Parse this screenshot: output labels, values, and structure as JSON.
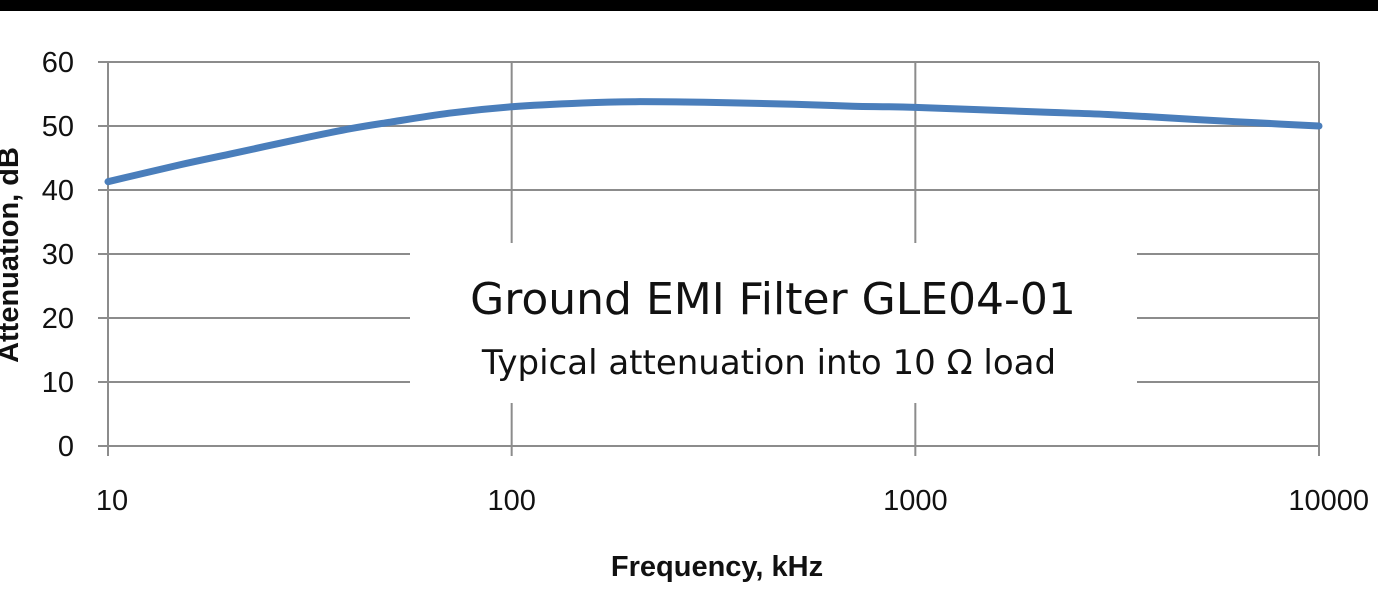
{
  "chart_data": {
    "type": "line",
    "title": "Ground EMI Filter GLE04-01",
    "subtitle": "Typical attenuation into 10 Ω load",
    "xlabel": "Frequency, kHz",
    "ylabel": "Attenuation, dB",
    "x_scale": "log",
    "xlim": [
      10,
      10000
    ],
    "ylim": [
      0,
      60
    ],
    "x_ticks": [
      "10",
      "100",
      "1000",
      "10000"
    ],
    "y_ticks": [
      "0",
      "10",
      "20",
      "30",
      "40",
      "50",
      "60"
    ],
    "grid": true,
    "colors": {
      "line": "#4a7ebb",
      "grid": "#8c8c8c",
      "border": "#000000"
    },
    "series": [
      {
        "x": [
          10,
          15,
          20,
          30,
          40,
          50,
          70,
          100,
          150,
          200,
          300,
          500,
          700,
          1000,
          2000,
          3000,
          5000,
          7000,
          10000
        ],
        "values": [
          41.3,
          43.9,
          45.6,
          48.0,
          49.6,
          50.6,
          52.0,
          53.0,
          53.6,
          53.8,
          53.7,
          53.4,
          53.1,
          52.9,
          52.2,
          51.8,
          51.0,
          50.5,
          50.0
        ]
      }
    ]
  }
}
